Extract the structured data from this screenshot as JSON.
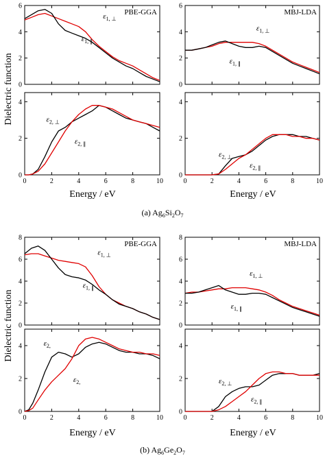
{
  "colors": {
    "black": "#000000",
    "red": "#e00000"
  },
  "axis": {
    "ylabel": "Dielectric function",
    "xlabel": "Energy / eV",
    "xticks": [
      "0",
      "2",
      "4",
      "6",
      "8",
      "10"
    ]
  },
  "captions": {
    "a": {
      "prefix": "(a) Ag",
      "s1": "6",
      "m1": "Si",
      "s2": "2",
      "m2": "O",
      "s3": "7"
    },
    "b": {
      "prefix": "(b) Ag",
      "s1": "6",
      "m1": "Ge",
      "s2": "2",
      "m2": "O",
      "s3": "7"
    }
  },
  "methods": {
    "pbe": "PBE-GGA",
    "mbj": "MBJ-LDA"
  },
  "chart_data": [
    {
      "type": "line",
      "material": "Ag6Si2O7",
      "method": "PBE-GGA",
      "quantity": "eps1",
      "xlim": [
        0,
        10
      ],
      "ylim": [
        0,
        6
      ],
      "yticks": [
        "0",
        "2",
        "4",
        "6"
      ],
      "series": [
        {
          "name": "ε1, ⊥",
          "color": "red",
          "x": [
            0,
            0.5,
            1,
            1.5,
            2,
            2.5,
            3,
            3.5,
            4,
            4.5,
            5,
            5.5,
            6,
            6.5,
            7,
            7.5,
            8,
            8.5,
            9,
            9.5,
            10
          ],
          "y": [
            4.9,
            5.1,
            5.3,
            5.4,
            5.2,
            5.0,
            4.8,
            4.6,
            4.4,
            4.0,
            3.4,
            2.9,
            2.5,
            2.1,
            1.8,
            1.6,
            1.4,
            1.1,
            0.8,
            0.5,
            0.3
          ]
        },
        {
          "name": "ε1, ∥",
          "color": "black",
          "x": [
            0,
            0.5,
            1,
            1.5,
            2,
            2.5,
            3,
            3.5,
            4,
            4.5,
            5,
            5.5,
            6,
            6.5,
            7,
            7.5,
            8,
            8.5,
            9,
            9.5,
            10
          ],
          "y": [
            5.0,
            5.3,
            5.6,
            5.7,
            5.4,
            4.6,
            4.1,
            3.9,
            3.7,
            3.5,
            3.2,
            2.8,
            2.4,
            2.0,
            1.7,
            1.4,
            1.2,
            0.9,
            0.6,
            0.4,
            0.2
          ]
        }
      ],
      "annotations": [
        {
          "sym": "ε",
          "sub": "1, ⊥",
          "x": 5.8,
          "y": 5.0
        },
        {
          "sym": "ε",
          "sub": "1, ∥",
          "x": 4.2,
          "y": 3.3
        }
      ]
    },
    {
      "type": "line",
      "material": "Ag6Si2O7",
      "method": "MBJ-LDA",
      "quantity": "eps1",
      "xlim": [
        0,
        10
      ],
      "ylim": [
        0,
        6
      ],
      "yticks": [
        "0",
        "2",
        "4",
        "6"
      ],
      "series": [
        {
          "name": "ε1, ⊥",
          "color": "red",
          "x": [
            0,
            0.5,
            1,
            1.5,
            2,
            2.5,
            3,
            3.5,
            4,
            4.5,
            5,
            5.5,
            6,
            6.5,
            7,
            7.5,
            8,
            8.5,
            9,
            9.5,
            10
          ],
          "y": [
            2.6,
            2.6,
            2.7,
            2.8,
            2.9,
            3.1,
            3.2,
            3.2,
            3.2,
            3.2,
            3.2,
            3.1,
            2.9,
            2.6,
            2.3,
            2.0,
            1.7,
            1.5,
            1.3,
            1.1,
            0.9
          ]
        },
        {
          "name": "ε1, ∥",
          "color": "black",
          "x": [
            0,
            0.5,
            1,
            1.5,
            2,
            2.5,
            3,
            3.5,
            4,
            4.5,
            5,
            5.5,
            6,
            6.5,
            7,
            7.5,
            8,
            8.5,
            9,
            9.5,
            10
          ],
          "y": [
            2.6,
            2.6,
            2.7,
            2.8,
            3.0,
            3.2,
            3.3,
            3.1,
            2.9,
            2.8,
            2.8,
            2.9,
            2.8,
            2.5,
            2.2,
            1.9,
            1.6,
            1.4,
            1.2,
            1.0,
            0.8
          ]
        }
      ],
      "annotations": [
        {
          "sym": "ε",
          "sub": "1, ⊥",
          "x": 5.3,
          "y": 4.1
        },
        {
          "sym": "ε",
          "sub": "1, ∥",
          "x": 3.3,
          "y": 1.6
        }
      ]
    },
    {
      "type": "line",
      "material": "Ag6Si2O7",
      "method": "PBE-GGA",
      "quantity": "eps2",
      "xlim": [
        0,
        10
      ],
      "ylim": [
        0,
        4.5
      ],
      "yticks": [
        "0",
        "2",
        "4"
      ],
      "series": [
        {
          "name": "ε2, ⊥",
          "color": "black",
          "x": [
            0,
            0.3,
            0.6,
            1,
            1.5,
            2,
            2.5,
            3,
            3.5,
            4,
            4.5,
            5,
            5.5,
            6,
            6.5,
            7,
            7.5,
            8,
            8.5,
            9,
            9.5,
            10
          ],
          "y": [
            0,
            0,
            0.05,
            0.3,
            1.0,
            1.8,
            2.4,
            2.6,
            2.9,
            3.1,
            3.3,
            3.5,
            3.8,
            3.7,
            3.5,
            3.3,
            3.1,
            3.0,
            2.9,
            2.8,
            2.6,
            2.4
          ]
        },
        {
          "name": "ε2, ∥",
          "color": "red",
          "x": [
            0,
            0.3,
            0.6,
            1,
            1.5,
            2,
            2.5,
            3,
            3.5,
            4,
            4.5,
            5,
            5.5,
            6,
            6.5,
            7,
            7.5,
            8,
            8.5,
            9,
            9.5,
            10
          ],
          "y": [
            0,
            0,
            0.05,
            0.2,
            0.6,
            1.2,
            1.8,
            2.4,
            2.9,
            3.3,
            3.6,
            3.8,
            3.8,
            3.7,
            3.6,
            3.4,
            3.2,
            3.0,
            2.9,
            2.8,
            2.7,
            2.6
          ]
        }
      ],
      "annotations": [
        {
          "sym": "ε",
          "sub": "2, ⊥",
          "x": 1.6,
          "y": 2.9
        },
        {
          "sym": "ε",
          "sub": "2, ∥",
          "x": 3.7,
          "y": 1.7
        }
      ]
    },
    {
      "type": "line",
      "material": "Ag6Si2O7",
      "method": "MBJ-LDA",
      "quantity": "eps2",
      "xlim": [
        0,
        10
      ],
      "ylim": [
        0,
        4.5
      ],
      "yticks": [
        "0",
        "2",
        "4"
      ],
      "series": [
        {
          "name": "ε2, ⊥",
          "color": "black",
          "x": [
            0,
            1,
            2,
            2.5,
            3,
            3.5,
            4,
            4.5,
            5,
            5.5,
            6,
            6.5,
            7,
            7.5,
            8,
            8.5,
            9,
            9.5,
            10
          ],
          "y": [
            0,
            0,
            0,
            0.05,
            0.5,
            0.9,
            1.0,
            1.1,
            1.3,
            1.6,
            1.9,
            2.1,
            2.2,
            2.2,
            2.2,
            2.1,
            2.1,
            2.0,
            1.9
          ]
        },
        {
          "name": "ε2, ∥",
          "color": "red",
          "x": [
            0,
            1,
            2,
            2.5,
            3,
            3.5,
            4,
            4.5,
            5,
            5.5,
            6,
            6.5,
            7,
            7.5,
            8,
            8.5,
            9,
            9.5,
            10
          ],
          "y": [
            0,
            0,
            0,
            0.05,
            0.3,
            0.6,
            0.9,
            1.1,
            1.4,
            1.7,
            2.0,
            2.2,
            2.2,
            2.2,
            2.1,
            2.1,
            2.0,
            2.0,
            1.9
          ]
        }
      ],
      "annotations": [
        {
          "sym": "ε",
          "sub": "2, ⊥",
          "x": 2.5,
          "y": 1.0
        },
        {
          "sym": "ε",
          "sub": "2, ∥",
          "x": 4.8,
          "y": 0.4
        }
      ]
    },
    {
      "type": "line",
      "material": "Ag6Ge2O7",
      "method": "PBE-GGA",
      "quantity": "eps1",
      "xlim": [
        0,
        10
      ],
      "ylim": [
        0,
        8
      ],
      "yticks": [
        "0",
        "2",
        "4",
        "6",
        "8"
      ],
      "series": [
        {
          "name": "ε1, ⊥",
          "color": "red",
          "x": [
            0,
            0.5,
            1,
            1.5,
            2,
            2.5,
            3,
            3.5,
            4,
            4.5,
            5,
            5.5,
            6,
            6.5,
            7,
            7.5,
            8,
            8.5,
            9,
            9.5,
            10
          ],
          "y": [
            6.4,
            6.5,
            6.5,
            6.3,
            6.1,
            5.9,
            5.8,
            5.7,
            5.6,
            5.3,
            4.5,
            3.5,
            2.8,
            2.3,
            2.0,
            1.7,
            1.5,
            1.2,
            1.0,
            0.7,
            0.5
          ]
        },
        {
          "name": "ε1, ∥",
          "color": "black",
          "x": [
            0,
            0.5,
            1,
            1.5,
            2,
            2.5,
            3,
            3.5,
            4,
            4.5,
            5,
            5.5,
            6,
            6.5,
            7,
            7.5,
            8,
            8.5,
            9,
            9.5,
            10
          ],
          "y": [
            6.5,
            7.0,
            7.2,
            6.8,
            6.0,
            5.2,
            4.6,
            4.4,
            4.3,
            4.1,
            3.7,
            3.2,
            2.8,
            2.3,
            1.9,
            1.7,
            1.5,
            1.2,
            1.0,
            0.7,
            0.5
          ]
        }
      ],
      "annotations": [
        {
          "sym": "ε",
          "sub": "1, ⊥",
          "x": 5.4,
          "y": 6.4
        },
        {
          "sym": "ε",
          "sub": "1, ∥",
          "x": 4.3,
          "y": 3.4
        }
      ]
    },
    {
      "type": "line",
      "material": "Ag6Ge2O7",
      "method": "MBJ-LDA",
      "quantity": "eps1",
      "xlim": [
        0,
        10
      ],
      "ylim": [
        0,
        8
      ],
      "yticks": [
        "0",
        "2",
        "4",
        "6",
        "8"
      ],
      "series": [
        {
          "name": "ε1, ⊥",
          "color": "red",
          "x": [
            0,
            0.5,
            1,
            1.5,
            2,
            2.5,
            3,
            3.5,
            4,
            4.5,
            5,
            5.5,
            6,
            6.5,
            7,
            7.5,
            8,
            8.5,
            9,
            9.5,
            10
          ],
          "y": [
            2.9,
            3.0,
            3.0,
            3.1,
            3.2,
            3.3,
            3.3,
            3.4,
            3.4,
            3.4,
            3.3,
            3.2,
            3.0,
            2.7,
            2.3,
            2.0,
            1.7,
            1.5,
            1.3,
            1.1,
            0.9
          ]
        },
        {
          "name": "ε1, ∥",
          "color": "black",
          "x": [
            0,
            0.5,
            1,
            1.5,
            2,
            2.5,
            3,
            3.5,
            4,
            4.5,
            5,
            5.5,
            6,
            6.5,
            7,
            7.5,
            8,
            8.5,
            9,
            9.5,
            10
          ],
          "y": [
            2.9,
            2.9,
            3.0,
            3.2,
            3.4,
            3.6,
            3.2,
            3.0,
            2.8,
            2.8,
            2.9,
            2.9,
            2.8,
            2.5,
            2.2,
            1.9,
            1.6,
            1.4,
            1.2,
            1.0,
            0.8
          ]
        }
      ],
      "annotations": [
        {
          "sym": "ε",
          "sub": "1, ⊥",
          "x": 4.8,
          "y": 4.5
        },
        {
          "sym": "ε",
          "sub": "1, ∥",
          "x": 3.4,
          "y": 1.5
        }
      ]
    },
    {
      "type": "line",
      "material": "Ag6Ge2O7",
      "method": "PBE-GGA",
      "quantity": "eps2",
      "xlim": [
        0,
        10
      ],
      "ylim": [
        0,
        5
      ],
      "yticks": [
        "0",
        "2",
        "4"
      ],
      "series": [
        {
          "name": "ε2, ⊥",
          "color": "black",
          "x": [
            0,
            0.3,
            0.6,
            1,
            1.5,
            2,
            2.5,
            3,
            3.5,
            4,
            4.5,
            5,
            5.5,
            6,
            6.5,
            7,
            7.5,
            8,
            8.5,
            9,
            9.5,
            10
          ],
          "y": [
            0,
            0.1,
            0.5,
            1.3,
            2.4,
            3.3,
            3.6,
            3.5,
            3.3,
            3.5,
            3.9,
            4.1,
            4.2,
            4.1,
            3.9,
            3.7,
            3.6,
            3.6,
            3.5,
            3.5,
            3.4,
            3.2
          ]
        },
        {
          "name": "ε2, ∥",
          "color": "red",
          "x": [
            0,
            0.3,
            0.6,
            1,
            1.5,
            2,
            2.5,
            3,
            3.5,
            4,
            4.5,
            5,
            5.5,
            6,
            6.5,
            7,
            7.5,
            8,
            8.5,
            9,
            9.5,
            10
          ],
          "y": [
            0,
            0.05,
            0.2,
            0.7,
            1.3,
            1.8,
            2.2,
            2.6,
            3.2,
            4.0,
            4.4,
            4.5,
            4.4,
            4.2,
            4.0,
            3.8,
            3.7,
            3.6,
            3.6,
            3.5,
            3.5,
            3.4
          ]
        }
      ],
      "annotations": [
        {
          "sym": "ε",
          "sub": "2,",
          "x": 1.4,
          "y": 4.0
        },
        {
          "sym": "ε",
          "sub": "2,",
          "x": 3.6,
          "y": 1.8
        }
      ]
    },
    {
      "type": "line",
      "material": "Ag6Ge2O7",
      "method": "MBJ-LDA",
      "quantity": "eps2",
      "xlim": [
        0,
        10
      ],
      "ylim": [
        0,
        5
      ],
      "yticks": [
        "0",
        "2",
        "4"
      ],
      "series": [
        {
          "name": "ε2, ⊥",
          "color": "black",
          "x": [
            0,
            1,
            2,
            2.5,
            3,
            3.5,
            4,
            4.5,
            5,
            5.5,
            6,
            6.5,
            7,
            7.5,
            8,
            8.5,
            9,
            9.5,
            10
          ],
          "y": [
            0,
            0,
            0,
            0.3,
            0.9,
            1.2,
            1.4,
            1.5,
            1.5,
            1.6,
            1.9,
            2.2,
            2.3,
            2.3,
            2.3,
            2.2,
            2.2,
            2.2,
            2.3
          ]
        },
        {
          "name": "ε2, ∥",
          "color": "red",
          "x": [
            0,
            1,
            2,
            2.5,
            3,
            3.5,
            4,
            4.5,
            5,
            5.5,
            6,
            6.5,
            7,
            7.5,
            8,
            8.5,
            9,
            9.5,
            10
          ],
          "y": [
            0,
            0,
            0,
            0.1,
            0.3,
            0.6,
            0.9,
            1.2,
            1.6,
            2.0,
            2.3,
            2.4,
            2.4,
            2.3,
            2.3,
            2.2,
            2.2,
            2.2,
            2.2
          ]
        }
      ],
      "annotations": [
        {
          "sym": "ε",
          "sub": "2, ⊥",
          "x": 2.5,
          "y": 1.7
        },
        {
          "sym": "ε",
          "sub": "2, ∥",
          "x": 4.9,
          "y": 0.6
        }
      ]
    }
  ]
}
